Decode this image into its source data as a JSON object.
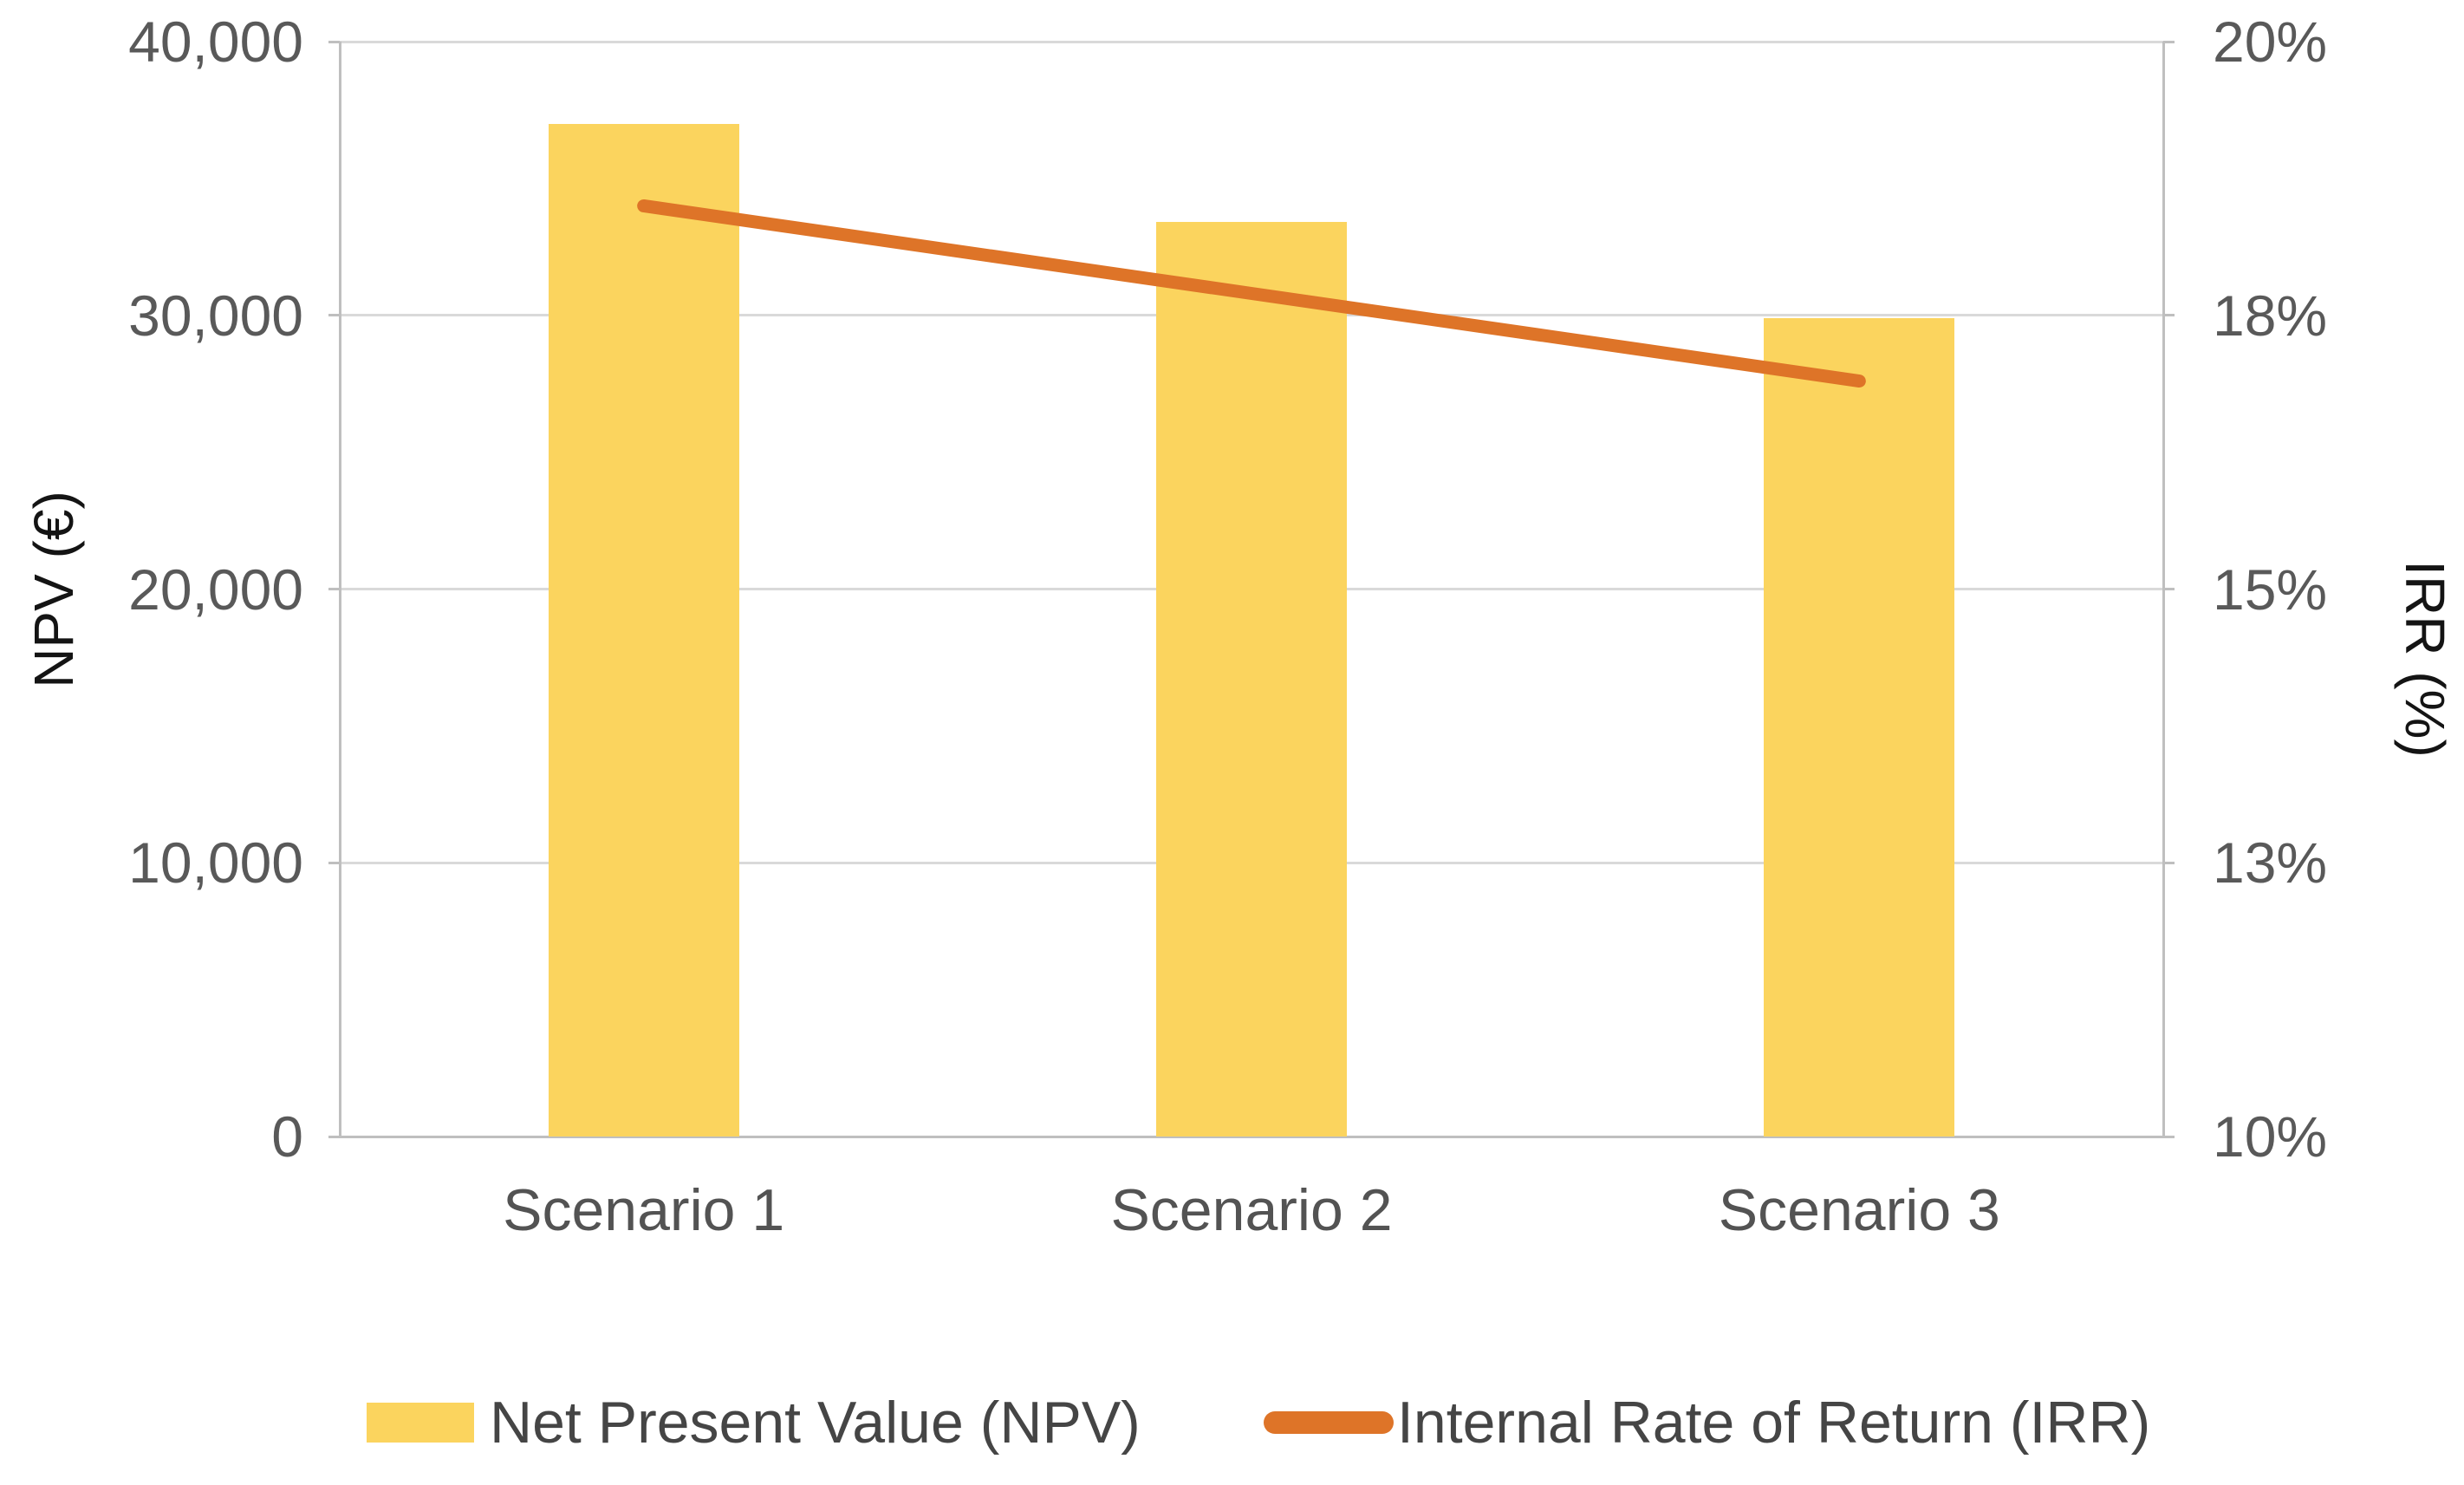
{
  "chart_data": {
    "type": "combo-bar-line",
    "title": "",
    "categories": [
      "Scenario 1",
      "Scenario 2",
      "Scenario 3"
    ],
    "series": [
      {
        "name": "Net Present Value (NPV)",
        "type": "bar",
        "axis": "left",
        "values": [
          37000,
          33400,
          29900
        ]
      },
      {
        "name": "Internal Rate of Return (IRR)",
        "type": "line",
        "axis": "right",
        "values": [
          18.5,
          17.7,
          16.9
        ],
        "unit": "%"
      }
    ],
    "left_axis": {
      "title": "NPV (€)",
      "min": 0,
      "max": 40000,
      "ticks": [
        {
          "value": 40000,
          "label": "40,000"
        },
        {
          "value": 30000,
          "label": "30,000"
        },
        {
          "value": 20000,
          "label": "20,000"
        },
        {
          "value": 10000,
          "label": "10,000"
        },
        {
          "value": 0,
          "label": "0"
        }
      ]
    },
    "right_axis": {
      "title": "IRR (%)",
      "min": 10,
      "max": 20,
      "ticks": [
        {
          "value": 20,
          "label": "20%"
        },
        {
          "value": 17.5,
          "label": "18%"
        },
        {
          "value": 15,
          "label": "15%"
        },
        {
          "value": 12.5,
          "label": "13%"
        },
        {
          "value": 10,
          "label": "10%"
        }
      ]
    },
    "legend": [
      {
        "label": "Net Present Value (NPV)",
        "marker": "bar-swatch"
      },
      {
        "label": "Internal Rate of Return (IRR)",
        "marker": "line-swatch"
      }
    ],
    "grid": true,
    "legend_position": "bottom"
  },
  "colors": {
    "bar_fill": "#FBD45E",
    "line_stroke": "#DE7428",
    "gridline": "#D9D9D9",
    "axis_border": "#BFBFBF",
    "tick_text": "#595959",
    "category_text": "#535353",
    "legend_text": "#454545",
    "axis_title_text": "#141414",
    "background": "#FFFFFF"
  }
}
